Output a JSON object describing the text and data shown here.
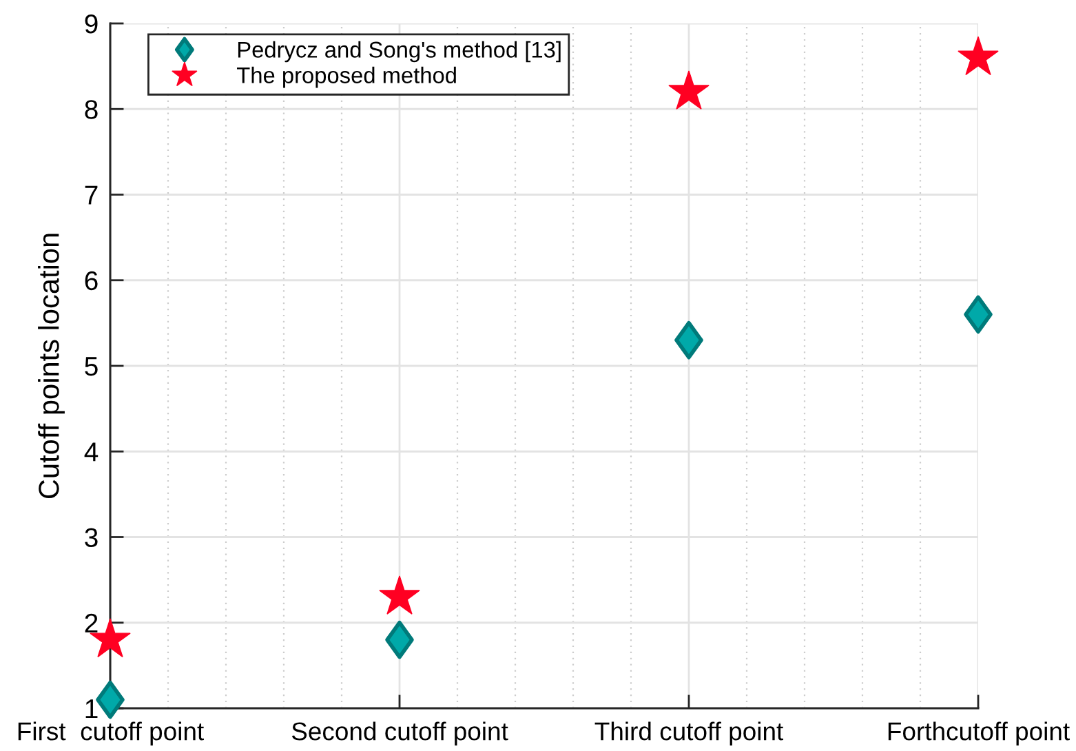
{
  "chart_data": {
    "type": "scatter",
    "categories": [
      "First  cutoff point",
      "Second cutoff point",
      "Third cutoff point",
      "Forthcutoff point"
    ],
    "ylabel": "Cutoff points location",
    "series": [
      {
        "name": "Pedrycz and Song's method [13]",
        "color": "#00a9a9",
        "marker": "diamond",
        "values": [
          1.1,
          1.8,
          5.3,
          5.6
        ]
      },
      {
        "name": "The proposed method",
        "color": "#ff0022",
        "marker": "star",
        "values": [
          1.8,
          2.3,
          8.2,
          8.6
        ]
      }
    ],
    "ylim": [
      1,
      9
    ],
    "yticks": [
      1,
      2,
      3,
      4,
      5,
      6,
      7,
      8,
      9
    ],
    "grid": true,
    "legend": "top left"
  }
}
